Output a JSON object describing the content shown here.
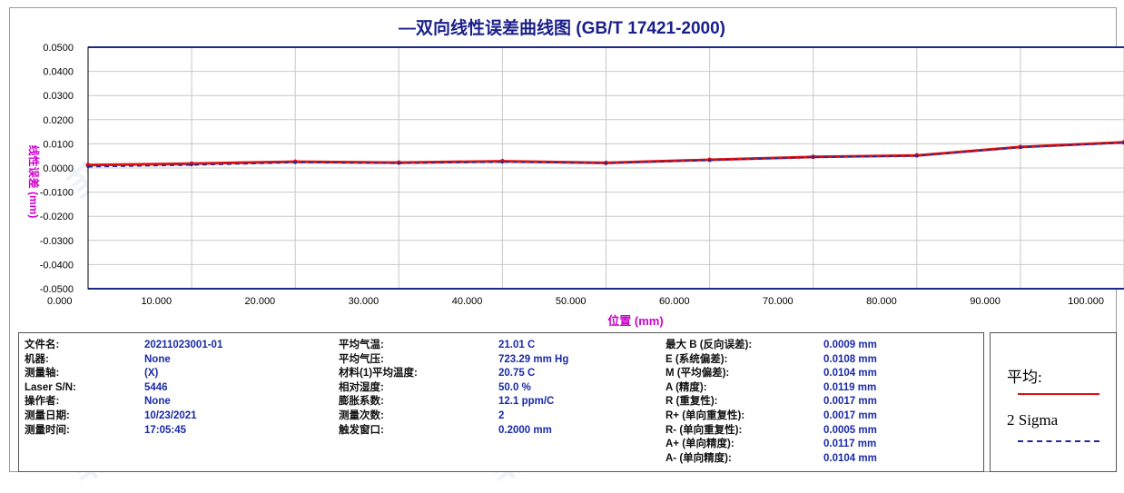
{
  "title": "—双向线性误差曲线图 (GB/T 17421-2000)",
  "colors": {
    "line_mean": "#dd1111",
    "line_2sigma": "#1c2a9a",
    "axis_label": "#cc00cc",
    "value_text": "#1a2aa8",
    "title": "#1a1f8a"
  },
  "chart_data": {
    "type": "line",
    "title": "—双向线性误差曲线图 (GB/T 17421-2000)",
    "xlabel": "位置 (mm)",
    "ylabel": "线性误差 (mm)",
    "xlim": [
      0,
      100
    ],
    "ylim": [
      -0.05,
      0.05
    ],
    "x_ticks": [
      "0.000",
      "10.000",
      "20.000",
      "30.000",
      "40.000",
      "50.000",
      "60.000",
      "70.000",
      "80.000",
      "90.000",
      "100.000"
    ],
    "y_ticks": [
      "0.0500",
      "0.0400",
      "0.0300",
      "0.0200",
      "0.0100",
      "0.0000",
      "-0.0100",
      "-0.0200",
      "-0.0300",
      "-0.0400",
      "-0.0500"
    ],
    "grid": true,
    "series": [
      {
        "name": "平均",
        "color": "#dd1111",
        "x": [
          0,
          10,
          20,
          30,
          40,
          50,
          60,
          70,
          80,
          90,
          100
        ],
        "y": [
          0.0012,
          0.0018,
          0.0026,
          0.0022,
          0.0028,
          0.0021,
          0.0034,
          0.0046,
          0.0052,
          0.0087,
          0.0106
        ]
      },
      {
        "name": "2 Sigma",
        "color": "#1c2a9a",
        "x": [
          0,
          10,
          20,
          30,
          40,
          50,
          60,
          70,
          80,
          90,
          100
        ],
        "y": [
          0.0005,
          0.0012,
          0.0022,
          0.0019,
          0.0024,
          0.0019,
          0.0032,
          0.0044,
          0.005,
          0.0085,
          0.0104
        ]
      }
    ]
  },
  "info": {
    "col1": [
      {
        "label": "文件名:",
        "value": "20211023001-01"
      },
      {
        "label": "机器:",
        "value": "None"
      },
      {
        "label": "测量轴:",
        "value": "(X)"
      },
      {
        "label": "Laser S/N:",
        "value": "5446"
      },
      {
        "label": "操作者:",
        "value": "None"
      },
      {
        "label": "测量日期:",
        "value": "10/23/2021"
      },
      {
        "label": "测量时间:",
        "value": "17:05:45"
      }
    ],
    "col2": [
      {
        "label": "平均气温:",
        "value": "21.01 C"
      },
      {
        "label": "平均气压:",
        "value": "723.29 mm Hg"
      },
      {
        "label": "材料(1)平均温度:",
        "value": "20.75 C"
      },
      {
        "label": "相对湿度:",
        "value": "50.0 %"
      },
      {
        "label": "膨胀系数:",
        "value": "12.1 ppm/C"
      },
      {
        "label": "测量次数:",
        "value": "2"
      },
      {
        "label": "触发窗口:",
        "value": "0.2000 mm"
      }
    ],
    "col3": [
      {
        "label": "最大 B (反向误差):",
        "value": "0.0009 mm"
      },
      {
        "label": "E (系统偏差):",
        "value": "0.0108 mm"
      },
      {
        "label": "M (平均偏差):",
        "value": "0.0104 mm"
      },
      {
        "label": "A (精度):",
        "value": "0.0119 mm"
      },
      {
        "label": "R (重复性):",
        "value": "0.0017 mm"
      },
      {
        "label": "R+ (单向重复性):",
        "value": "0.0017 mm"
      },
      {
        "label": "R- (单向重复性):",
        "value": "0.0005 mm"
      },
      {
        "label": "A+ (单向精度):",
        "value": "0.0117 mm"
      },
      {
        "label": "A- (单向精度):",
        "value": "0.0104 mm"
      }
    ]
  },
  "legend": {
    "mean_label": "平均:",
    "sigma_label": "2 Sigma"
  }
}
